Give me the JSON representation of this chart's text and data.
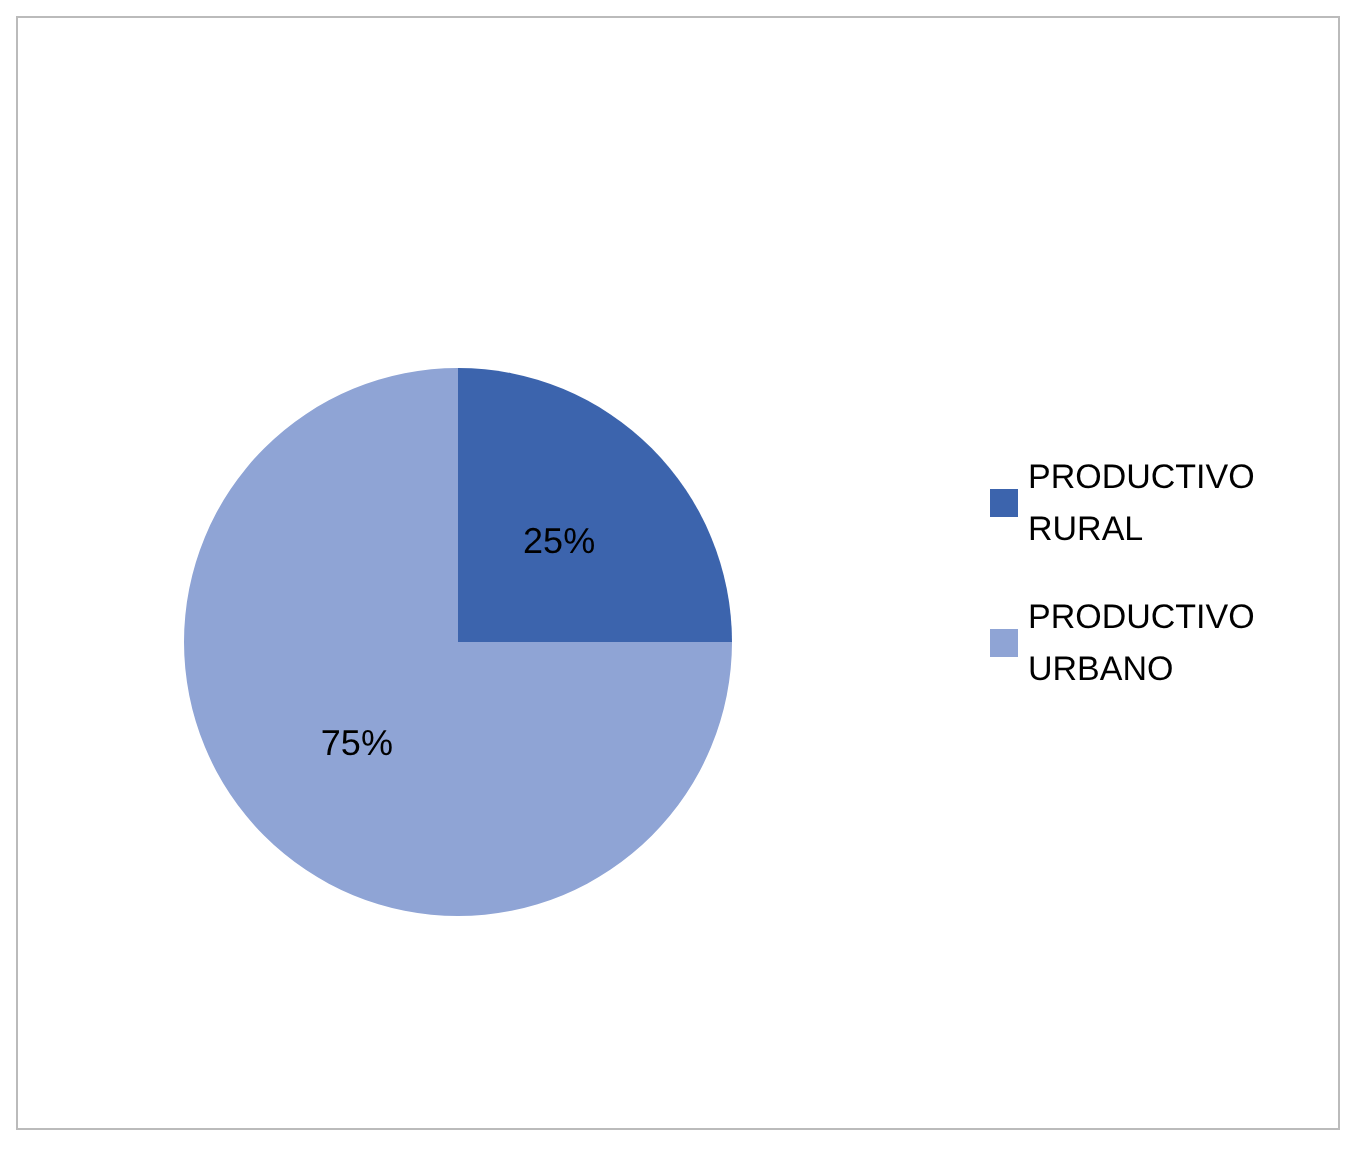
{
  "chart_data": {
    "type": "pie",
    "categories": [
      "PRODUCTIVO RURAL",
      "PRODUCTIVO URBANO"
    ],
    "values": [
      25,
      75
    ],
    "colors": [
      "#3c64ad",
      "#8fa4d5"
    ],
    "value_labels": [
      "25%",
      "75%"
    ],
    "legend": "right"
  }
}
